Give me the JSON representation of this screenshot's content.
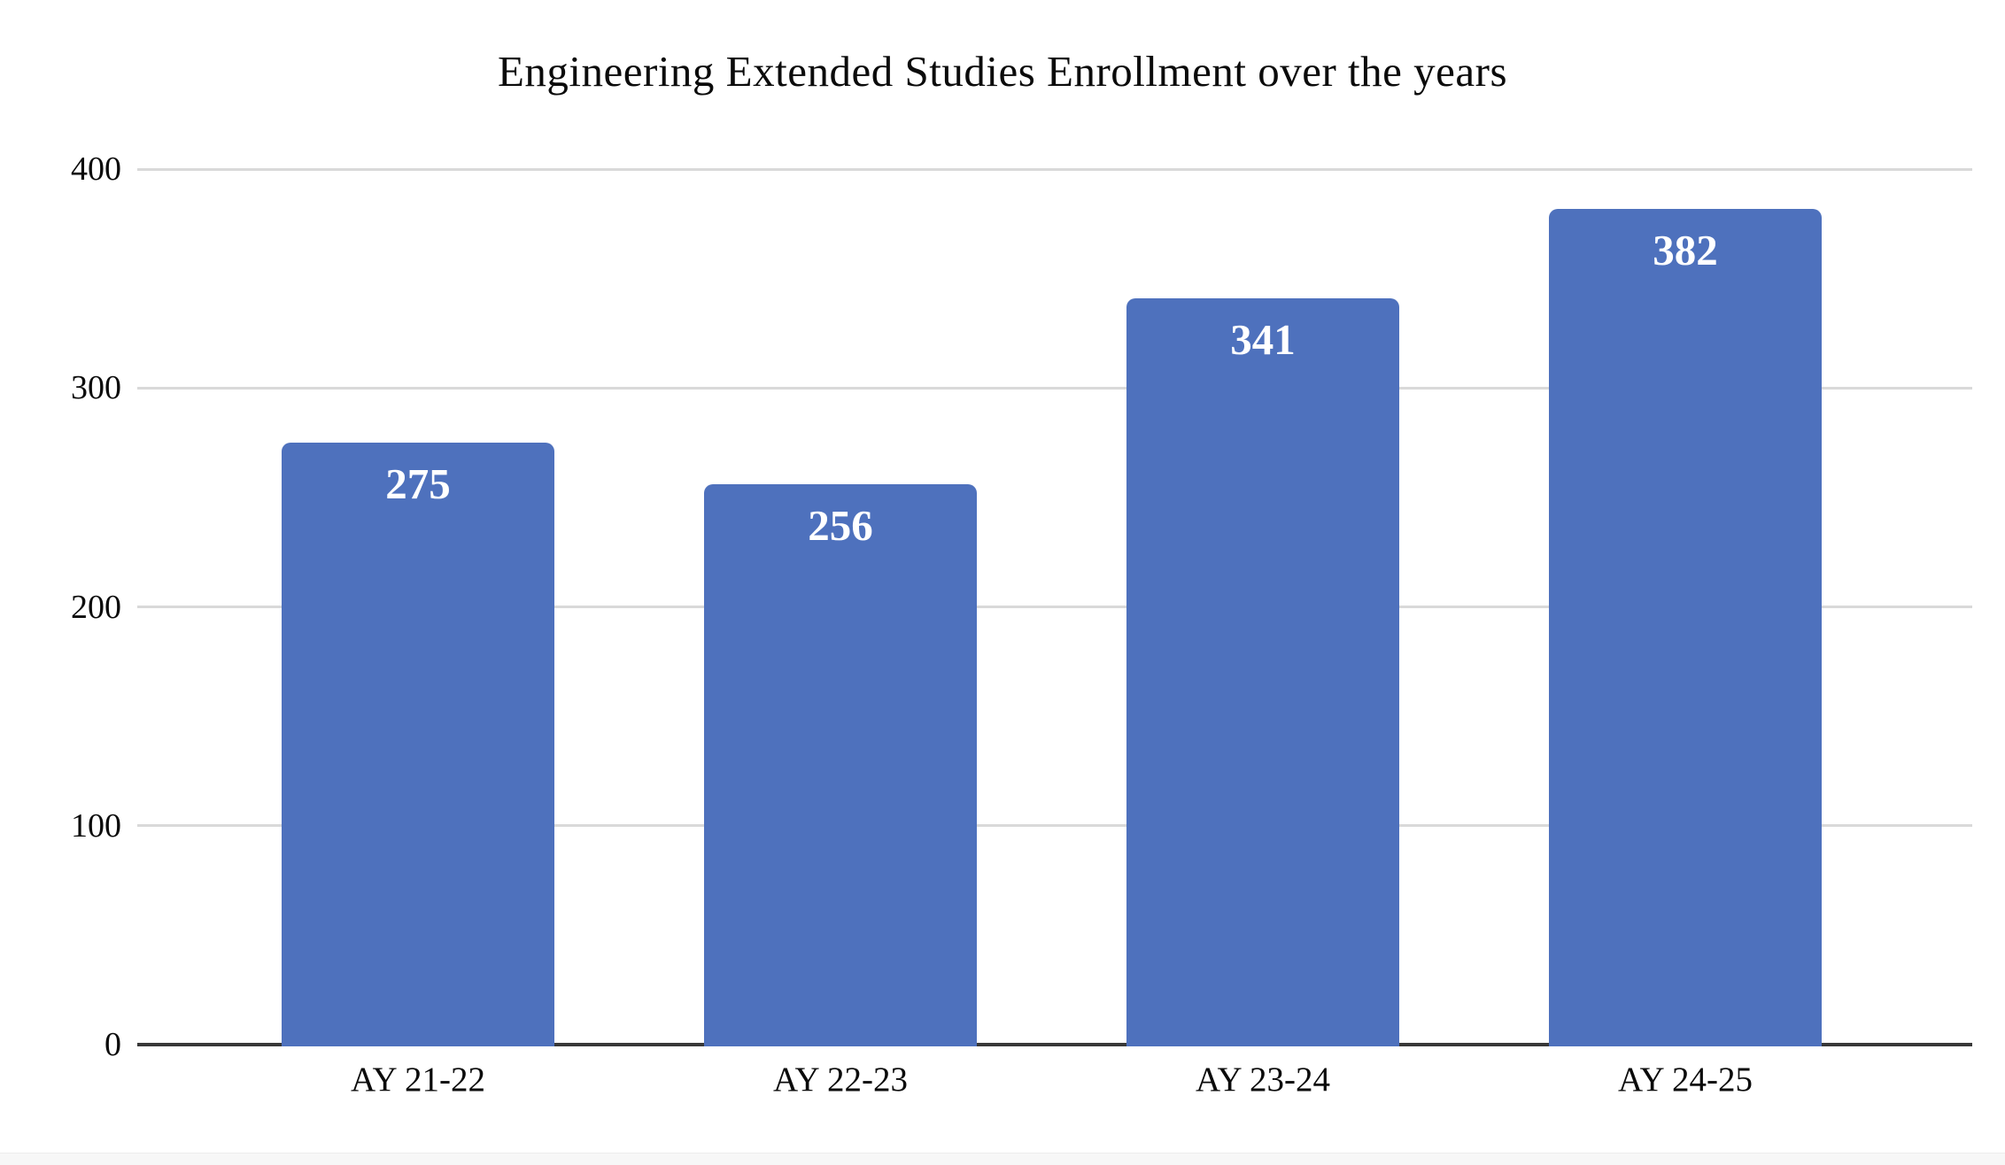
{
  "chart_data": {
    "type": "bar",
    "title": "Engineering Extended Studies Enrollment over the years",
    "categories": [
      "AY 21-22",
      "AY 22-23",
      "AY 23-24",
      "AY 24-25"
    ],
    "values": [
      275,
      256,
      341,
      382
    ],
    "value_labels": [
      "275",
      "256",
      "341",
      "382"
    ],
    "xlabel": "",
    "ylabel": "",
    "ylim": [
      0,
      400
    ],
    "yticks": [
      0,
      100,
      200,
      300,
      400
    ],
    "grid": true,
    "legend_position": "none",
    "colors": {
      "bar": "#4e71bd",
      "value_label": "#ffffff",
      "gridline": "#d9d9d9",
      "axis_line": "#383838",
      "text": "#0b0b0b",
      "background": "#ffffff",
      "footer_strip": "#f7f7f7"
    }
  }
}
